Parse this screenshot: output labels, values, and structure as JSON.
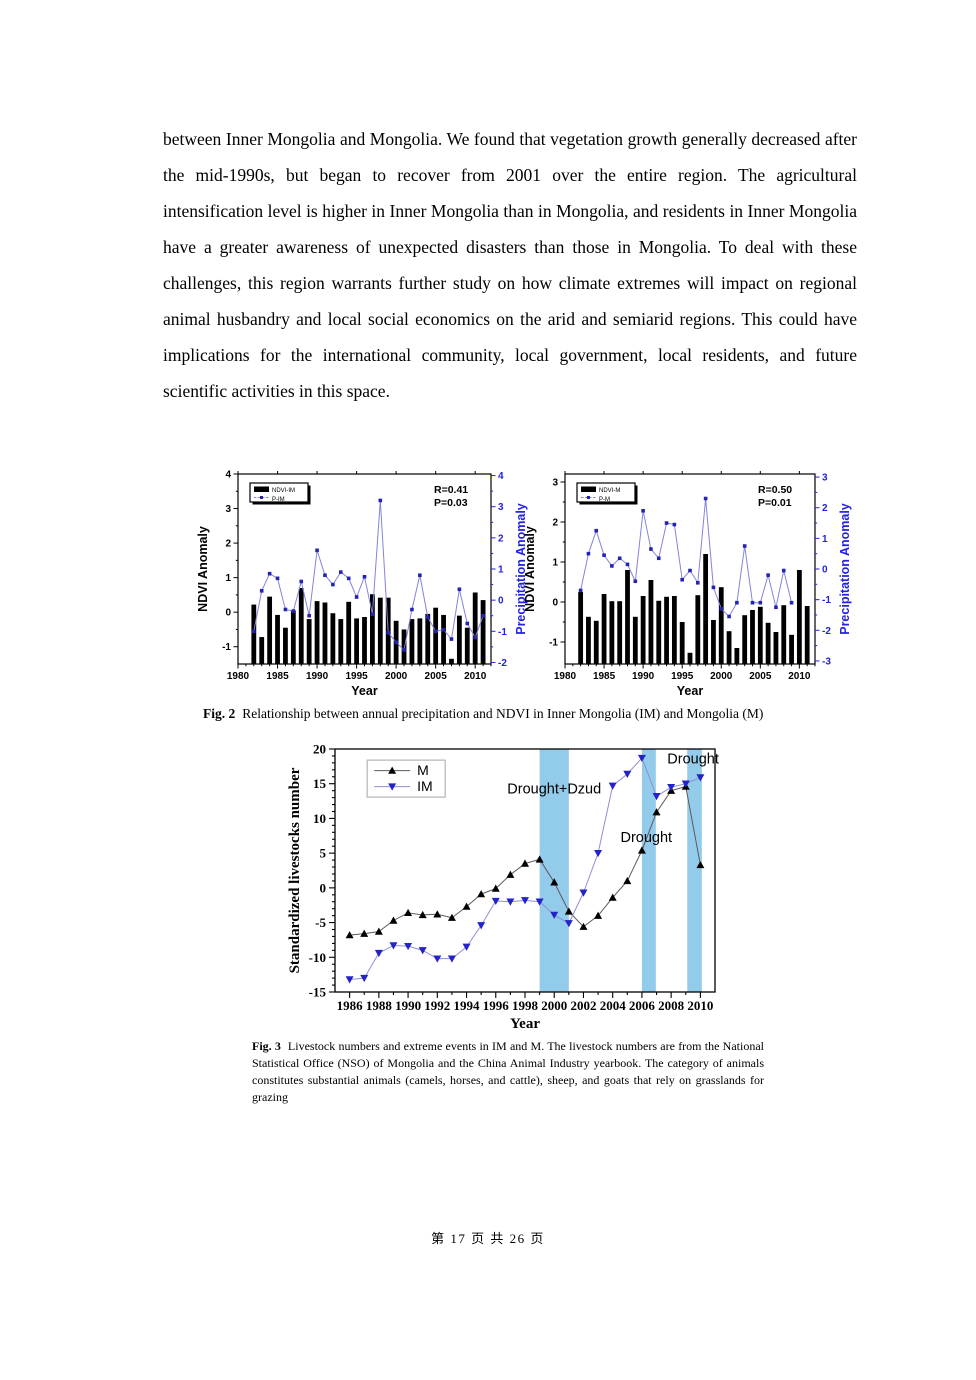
{
  "page": {
    "paragraph": "between Inner Mongolia and Mongolia. We found that vegetation growth generally decreased after the mid-1990s, but began to recover from 2001 over the entire region. The agricultural intensification level is higher in Inner Mongolia than in Mongolia, and residents in Inner Mongolia have a greater awareness of unexpected disasters than those in Mongolia. To deal with these challenges, this region warrants further study on how climate extremes will impact on regional animal husbandry and local social economics on the arid and semiarid regions. This could have implications for the international community, local government, local residents, and future scientific activities in this space.",
    "footer": "第 17 页  共 26 页"
  },
  "fig2": {
    "caption_label": "Fig. 2",
    "caption_text": "Relationship between annual precipitation and NDVI in Inner Mongolia (IM) and Mongolia (M)"
  },
  "fig3": {
    "caption_label": "Fig. 3",
    "caption_text": "Livestock numbers and extreme events in IM and M. The livestock numbers are from the National Statistical Office (NSO) of Mongolia and the China Animal Industry yearbook. The category of animals constitutes substantial animals (camels, horses, and cattle), sheep, and goats that rely on grasslands for grazing"
  },
  "colors": {
    "bar": "#000000",
    "precip_line": "#8484dc",
    "precip_marker": "#2424b4",
    "precip_axis": "#2222e0",
    "band": "#93cbea",
    "m_line": "#5a5a5a",
    "m_marker": "#000000",
    "im_line": "#8f8fd4",
    "im_marker": "#2323c8",
    "frame": "#000000"
  },
  "chart_data": [
    {
      "id": "fig2-inner-mongolia",
      "type": "bar+line",
      "xlabel": "Year",
      "ylabel_left": "NDVI Anomaly",
      "ylabel_right": "Precipitation Anomaly",
      "legend": [
        "NDVI-IM",
        "P-IM"
      ],
      "annotation": [
        "R=0.41",
        "P=0.03"
      ],
      "x_ticks": [
        1980,
        1985,
        1990,
        1995,
        2000,
        2005,
        2010
      ],
      "left_ticks": [
        -1,
        0,
        1,
        2,
        3,
        4
      ],
      "right_ticks": [
        -2,
        -1,
        0,
        1,
        2,
        3,
        4
      ],
      "x_range": [
        1980,
        2012
      ],
      "left_range": [
        -1.5,
        4.0
      ],
      "right_range": [
        -2.05,
        4.05
      ],
      "x": [
        1982,
        1983,
        1984,
        1985,
        1986,
        1987,
        1988,
        1989,
        1990,
        1991,
        1992,
        1993,
        1994,
        1995,
        1996,
        1997,
        1998,
        1999,
        2000,
        2001,
        2002,
        2003,
        2004,
        2005,
        2006,
        2007,
        2008,
        2009,
        2010,
        2011
      ],
      "bars": [
        0.22,
        -0.72,
        0.45,
        -0.08,
        -0.45,
        0.05,
        0.7,
        -0.2,
        0.32,
        0.28,
        -0.03,
        -0.2,
        0.3,
        -0.18,
        -0.14,
        0.52,
        0.42,
        0.42,
        -0.25,
        -0.5,
        -0.2,
        -0.18,
        -0.05,
        0.13,
        -0.08,
        -1.35,
        -0.1,
        -0.45,
        0.57,
        0.35
      ],
      "line": [
        -1.0,
        0.3,
        0.85,
        0.7,
        -0.3,
        -0.35,
        0.6,
        -0.5,
        1.6,
        0.8,
        0.5,
        0.9,
        0.7,
        0.1,
        0.75,
        -0.45,
        3.2,
        -1.05,
        -1.35,
        -1.6,
        -0.3,
        0.8,
        -0.55,
        -1.0,
        -0.95,
        -1.25,
        0.35,
        -0.75,
        -1.2,
        -0.5
      ]
    },
    {
      "id": "fig2-mongolia",
      "type": "bar+line",
      "xlabel": "Year",
      "ylabel_left": "NDVI Anomaly",
      "ylabel_right": "Precipitation Anomaly",
      "legend": [
        "NDVI-M",
        "P-M"
      ],
      "annotation": [
        "R=0.50",
        "P=0.01"
      ],
      "x_ticks": [
        1980,
        1985,
        1990,
        1995,
        2000,
        2005,
        2010
      ],
      "left_ticks": [
        -1,
        0,
        1,
        2,
        3
      ],
      "right_ticks": [
        -3,
        -2,
        -1,
        0,
        1,
        2,
        3
      ],
      "x_range": [
        1980,
        2012
      ],
      "left_range": [
        -1.55,
        3.2
      ],
      "right_range": [
        -3.1,
        3.1
      ],
      "x": [
        1982,
        1983,
        1984,
        1985,
        1986,
        1987,
        1988,
        1989,
        1990,
        1991,
        1992,
        1993,
        1994,
        1995,
        1996,
        1997,
        1998,
        1999,
        2000,
        2001,
        2002,
        2003,
        2004,
        2005,
        2006,
        2007,
        2008,
        2009,
        2010,
        2011
      ],
      "bars": [
        0.25,
        -0.37,
        -0.47,
        0.2,
        0.02,
        0.02,
        0.8,
        -0.37,
        0.15,
        0.55,
        0.03,
        0.13,
        0.15,
        -0.5,
        -1.27,
        0.17,
        1.2,
        -0.45,
        0.37,
        -0.73,
        -1.15,
        -0.33,
        -0.2,
        -0.12,
        -0.52,
        -0.75,
        -0.08,
        -0.82,
        0.8,
        -0.1
      ],
      "line": [
        -0.7,
        0.5,
        1.25,
        0.45,
        0.1,
        0.35,
        0.15,
        -0.4,
        1.9,
        0.65,
        0.35,
        1.5,
        1.45,
        -0.35,
        -0.05,
        -0.45,
        2.3,
        -0.6,
        -1.3,
        -1.55,
        -1.1,
        0.75,
        -1.1,
        -1.1,
        -0.2,
        -1.25,
        -0.05,
        -1.1,
        null,
        null
      ]
    },
    {
      "id": "fig3-livestock",
      "type": "line",
      "xlabel": "Year",
      "ylabel": "Standardized livestocks number",
      "legend": [
        "M",
        "IM"
      ],
      "x_ticks": [
        1986,
        1988,
        1990,
        1992,
        1994,
        1996,
        1998,
        2000,
        2002,
        2004,
        2006,
        2008,
        2010
      ],
      "y_ticks": [
        -15,
        -10,
        -5,
        0,
        5,
        10,
        15,
        20
      ],
      "x_range": [
        1985,
        2011
      ],
      "y_range": [
        -15,
        20
      ],
      "x": [
        1986,
        1987,
        1988,
        1989,
        1990,
        1991,
        1992,
        1993,
        1994,
        1995,
        1996,
        1997,
        1998,
        1999,
        2000,
        2001,
        2002,
        2003,
        2004,
        2005,
        2006,
        2007,
        2008,
        2009,
        2010
      ],
      "series": [
        {
          "name": "M",
          "marker": "triangle-up",
          "values": [
            -6.8,
            -6.6,
            -6.3,
            -4.7,
            -3.6,
            -3.9,
            -3.8,
            -4.3,
            -2.7,
            -0.9,
            -0.1,
            1.9,
            3.5,
            4.1,
            0.8,
            -3.4,
            -5.6,
            -4.0,
            -1.4,
            1.0,
            5.4,
            10.9,
            14.0,
            14.6,
            3.3
          ]
        },
        {
          "name": "IM",
          "marker": "triangle-down",
          "values": [
            -13.2,
            -13.0,
            -9.4,
            -8.3,
            -8.4,
            -9.0,
            -10.2,
            -10.2,
            -8.5,
            -5.4,
            -1.9,
            -2.0,
            -1.8,
            -2.0,
            -3.9,
            -5.1,
            -0.7,
            5.0,
            14.7,
            16.4,
            18.7,
            13.2,
            14.5,
            15.0,
            15.9
          ]
        }
      ],
      "bands": [
        {
          "x0": 1999.0,
          "x1": 2001.0,
          "label": "Drought+Dzud"
        },
        {
          "x0": 2006.0,
          "x1": 2006.95,
          "label": "Drought"
        },
        {
          "x0": 2009.1,
          "x1": 2010.1,
          "label": "Drought"
        }
      ],
      "annotations": [
        {
          "text": "Drought+Dzud",
          "x": 2000.0,
          "y": 13.6
        },
        {
          "text": "Drought",
          "x": 2006.3,
          "y": 6.6
        },
        {
          "text": "Drought",
          "x": 2009.5,
          "y": 17.9
        }
      ]
    }
  ]
}
